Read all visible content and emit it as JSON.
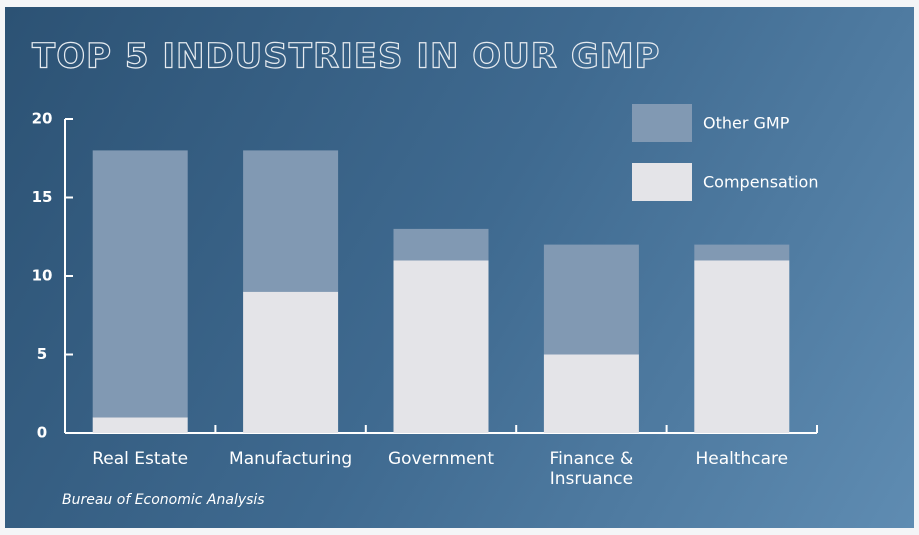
{
  "chart_data": {
    "type": "stacked_bar",
    "title": "TOP 5 INDUSTRIES IN OUR GMP",
    "categories": [
      "Real Estate",
      "Manufacturing",
      "Government",
      "Finance & Insruance",
      "Healthcare"
    ],
    "series": [
      {
        "name": "Compensation",
        "color": "#e4e4e8",
        "values": [
          1,
          9,
          11,
          5,
          11
        ]
      },
      {
        "name": "Other GMP",
        "color": "#8199b3",
        "values": [
          17,
          9,
          2,
          7,
          1
        ]
      }
    ],
    "ylim": [
      0,
      20
    ],
    "yticks": [
      0,
      5,
      10,
      15,
      20
    ],
    "source": "Bureau of Economic Analysis"
  }
}
